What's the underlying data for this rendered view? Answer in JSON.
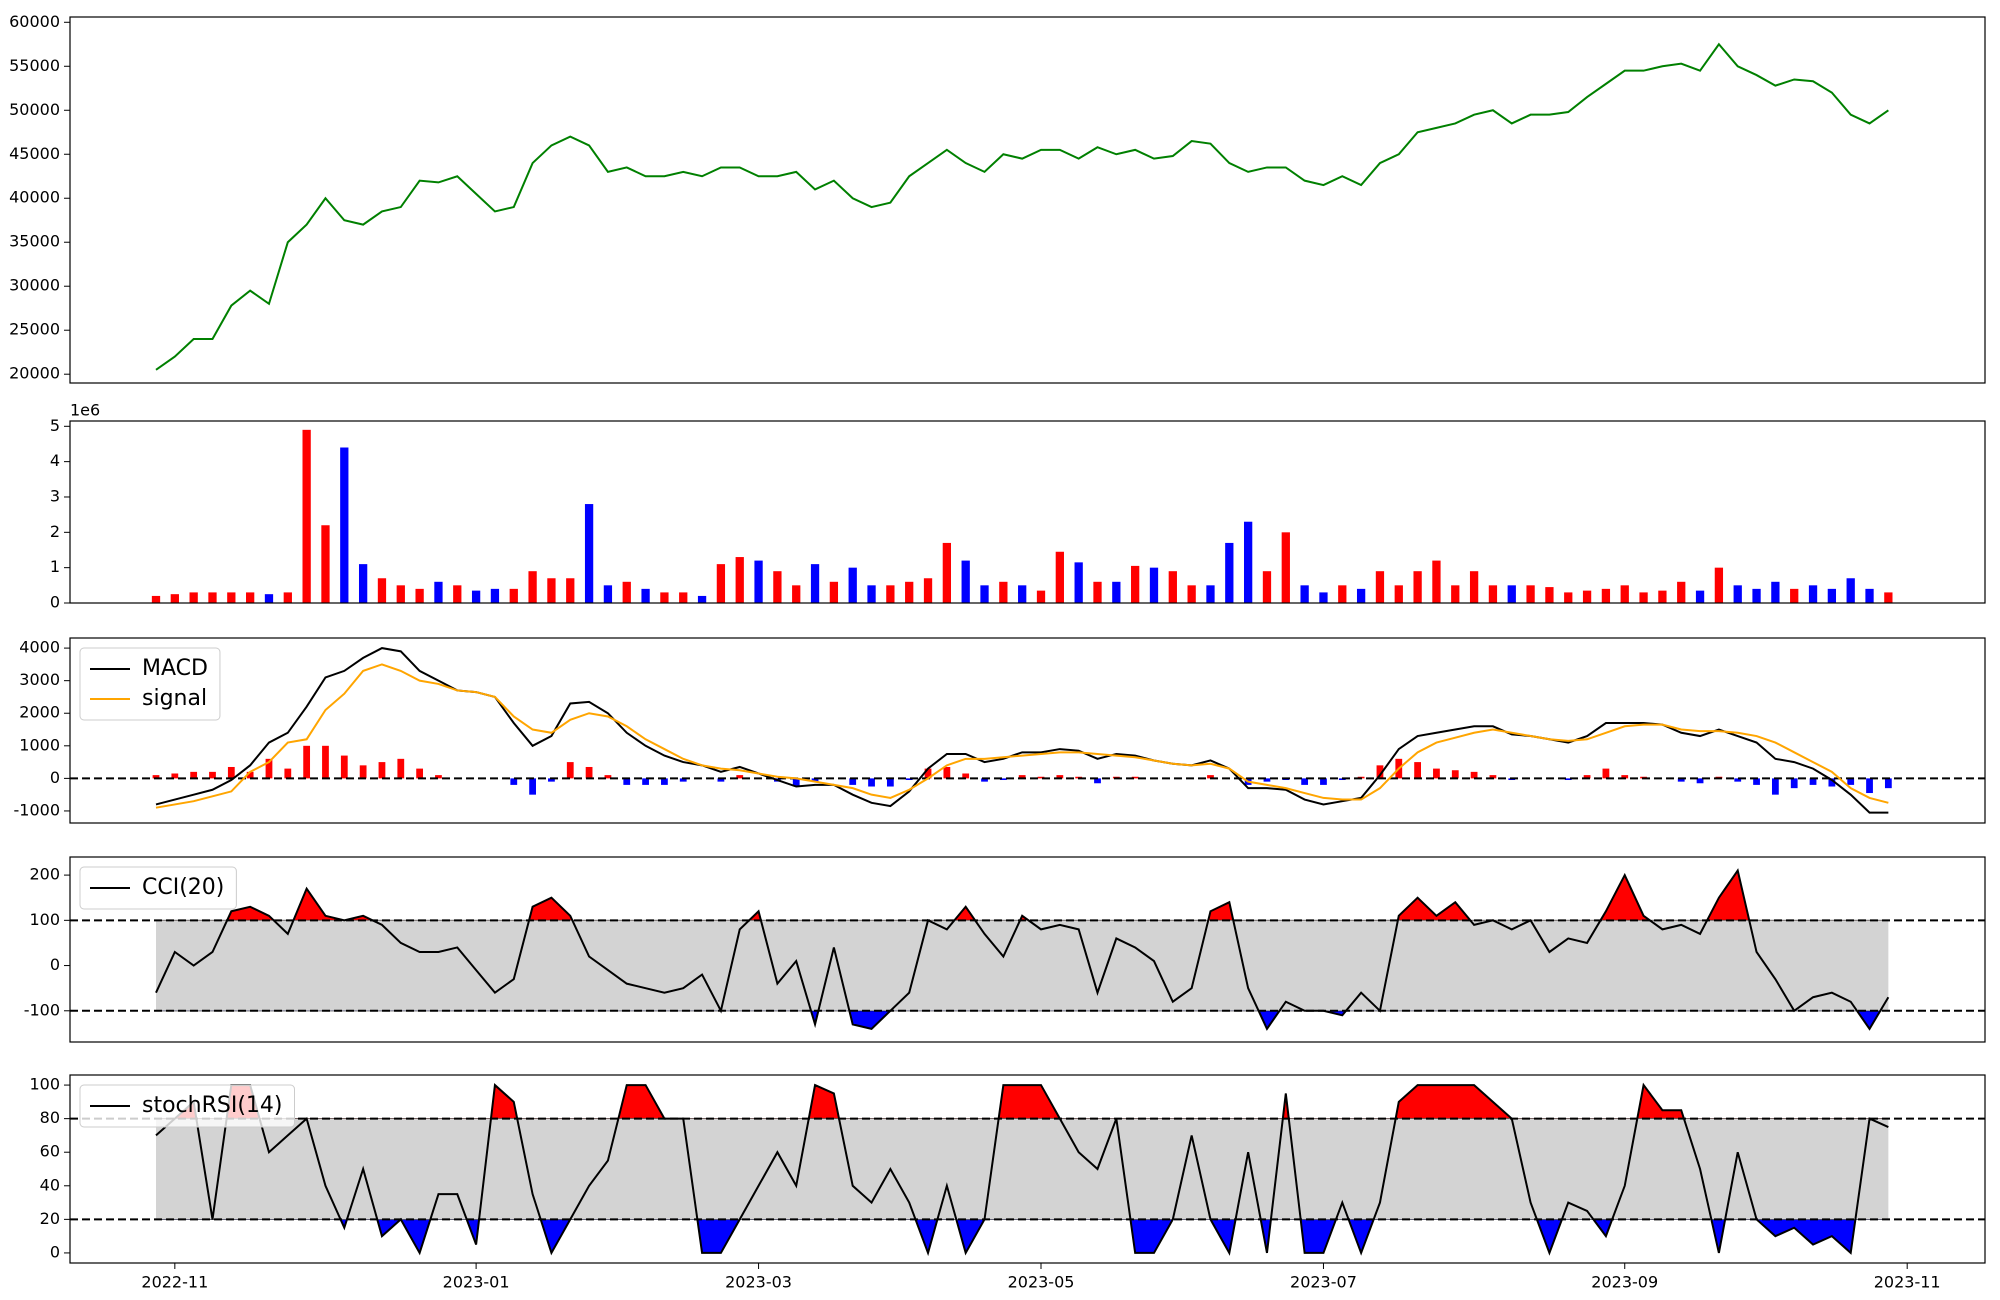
{
  "chart_data": [
    {
      "type": "line",
      "color": "#008000",
      "values": [
        20500,
        22000,
        24000,
        24000,
        27800,
        29500,
        28000,
        35000,
        37000,
        40000,
        37500,
        37000,
        38500,
        39000,
        42000,
        41800,
        42500,
        40500,
        38500,
        39000,
        44000,
        46000,
        47000,
        46000,
        43000,
        43500,
        42500,
        42500,
        43000,
        42500,
        43500,
        43500,
        42500,
        42500,
        43000,
        41000,
        42000,
        40000,
        39000,
        39500,
        42500,
        44000,
        45500,
        44000,
        43000,
        45000,
        44500,
        45500,
        45500,
        44500,
        45800,
        45000,
        45500,
        44500,
        44800,
        46500,
        46200,
        44000,
        43000,
        43500,
        43500,
        42000,
        41500,
        42500,
        41500,
        44000,
        45000,
        47500,
        48000,
        48500,
        49500,
        50000,
        48500,
        49500,
        49500,
        49800,
        51500,
        53000,
        54500,
        54500,
        55000,
        55300,
        54500,
        57500,
        55000,
        54000,
        52800,
        53500,
        53300,
        52000,
        49500,
        48500,
        50000
      ],
      "ylim": [
        19000,
        60600
      ],
      "yticks": [
        20000,
        25000,
        30000,
        35000,
        40000,
        45000,
        50000,
        55000,
        60000
      ]
    },
    {
      "type": "bar",
      "offset_label": "1e6",
      "up_color": "#ff0000",
      "down_color": "#0000ff",
      "values": [
        0.2,
        0.25,
        0.3,
        0.3,
        0.3,
        0.3,
        0.25,
        0.3,
        4.9,
        2.2,
        4.4,
        1.1,
        0.7,
        0.5,
        0.4,
        0.6,
        0.5,
        0.35,
        0.4,
        0.4,
        0.9,
        0.7,
        0.7,
        2.8,
        0.5,
        0.6,
        0.4,
        0.3,
        0.3,
        0.2,
        1.1,
        1.3,
        1.2,
        0.9,
        0.5,
        1.1,
        0.6,
        1.0,
        0.5,
        0.5,
        0.6,
        0.7,
        1.7,
        1.2,
        0.5,
        0.6,
        0.5,
        0.35,
        1.45,
        1.15,
        0.6,
        0.6,
        1.05,
        1.0,
        0.9,
        0.5,
        0.5,
        1.7,
        2.3,
        0.9,
        2.0,
        0.5,
        0.3,
        0.5,
        0.4,
        0.9,
        0.5,
        0.9,
        1.2,
        0.5,
        0.9,
        0.5,
        0.5,
        0.5,
        0.45,
        0.3,
        0.35,
        0.4,
        0.5,
        0.3,
        0.35,
        0.6,
        0.35,
        1.0,
        0.5,
        0.4,
        0.6,
        0.4,
        0.5,
        0.4,
        0.7,
        0.4,
        0.3
      ],
      "ylim": [
        0,
        5.15
      ],
      "yticks": [
        0,
        1,
        2,
        3,
        4,
        5
      ]
    },
    {
      "type": "macd",
      "positive_color": "#ff0000",
      "negative_color": "#0000ff",
      "zero_line": true,
      "series": [
        {
          "name": "MACD",
          "color": "#000000",
          "values": [
            -800,
            -650,
            -500,
            -350,
            -50,
            400,
            1100,
            1400,
            2200,
            3100,
            3300,
            3700,
            4000,
            3900,
            3300,
            3000,
            2700,
            2650,
            2500,
            1700,
            1000,
            1300,
            2300,
            2350,
            2000,
            1400,
            1000,
            700,
            500,
            400,
            200,
            350,
            150,
            -50,
            -250,
            -200,
            -200,
            -500,
            -750,
            -850,
            -400,
            300,
            750,
            750,
            500,
            600,
            800,
            800,
            900,
            850,
            600,
            750,
            700,
            550,
            450,
            400,
            550,
            300,
            -300,
            -300,
            -350,
            -650,
            -800,
            -700,
            -600,
            100,
            900,
            1300,
            1400,
            1500,
            1600,
            1600,
            1350,
            1300,
            1200,
            1100,
            1300,
            1700,
            1700,
            1700,
            1650,
            1400,
            1300,
            1500,
            1300,
            1100,
            600,
            500,
            300,
            -50,
            -500,
            -1050,
            -1050
          ]
        },
        {
          "name": "signal",
          "color": "#ffa500",
          "values": [
            -900,
            -800,
            -700,
            -550,
            -400,
            200,
            500,
            1100,
            1200,
            2100,
            2600,
            3300,
            3500,
            3300,
            3000,
            2900,
            2700,
            2650,
            2500,
            1900,
            1500,
            1400,
            1800,
            2000,
            1900,
            1600,
            1200,
            900,
            600,
            400,
            300,
            250,
            150,
            50,
            0,
            -100,
            -200,
            -300,
            -500,
            -600,
            -350,
            0,
            400,
            600,
            600,
            650,
            700,
            750,
            800,
            800,
            750,
            700,
            650,
            550,
            450,
            400,
            450,
            300,
            -100,
            -200,
            -300,
            -450,
            -600,
            -650,
            -650,
            -300,
            300,
            800,
            1100,
            1250,
            1400,
            1500,
            1400,
            1300,
            1200,
            1150,
            1200,
            1400,
            1600,
            1650,
            1650,
            1500,
            1450,
            1450,
            1400,
            1300,
            1100,
            800,
            500,
            200,
            -300,
            -600,
            -750
          ]
        }
      ],
      "ylim": [
        -1370,
        4310
      ],
      "yticks": [
        -1000,
        0,
        1000,
        2000,
        3000,
        4000
      ]
    },
    {
      "type": "oscillator",
      "thresholds": [
        -100,
        100
      ],
      "band_color": "#d3d3d3",
      "above_color": "#ff0000",
      "below_color": "#0000ff",
      "series": [
        {
          "name": "CCI(20)",
          "color": "#000000",
          "values": [
            -60,
            30,
            0,
            30,
            120,
            130,
            110,
            70,
            170,
            110,
            100,
            110,
            90,
            50,
            30,
            30,
            40,
            -10,
            -60,
            -30,
            130,
            150,
            110,
            20,
            -10,
            -40,
            -50,
            -60,
            -50,
            -20,
            -100,
            80,
            120,
            -40,
            10,
            -130,
            40,
            -130,
            -140,
            -100,
            -60,
            100,
            80,
            130,
            70,
            20,
            110,
            80,
            90,
            80,
            -60,
            60,
            40,
            10,
            -80,
            -50,
            120,
            140,
            -50,
            -140,
            -80,
            -100,
            -100,
            -110,
            -60,
            -100,
            110,
            150,
            110,
            140,
            90,
            100,
            80,
            100,
            30,
            60,
            50,
            120,
            200,
            110,
            80,
            90,
            70,
            150,
            210,
            30,
            -30,
            -100,
            -70,
            -60,
            -80,
            -140,
            -70
          ]
        }
      ],
      "ylim": [
        -169,
        240
      ],
      "yticks": [
        -100,
        0,
        100,
        200
      ]
    },
    {
      "type": "oscillator",
      "thresholds": [
        20,
        80
      ],
      "band_color": "#d3d3d3",
      "above_color": "#ff0000",
      "below_color": "#0000ff",
      "categories": [
        null,
        "2022-11",
        null,
        null,
        null,
        null,
        null,
        null,
        null,
        null,
        null,
        null,
        null,
        null,
        null,
        null,
        null,
        "2023-01",
        null,
        null,
        null,
        null,
        null,
        null,
        null,
        null,
        null,
        null,
        null,
        null,
        null,
        null,
        "2023-03",
        null,
        null,
        null,
        null,
        null,
        null,
        null,
        null,
        null,
        null,
        null,
        null,
        null,
        null,
        "2023-05",
        null,
        null,
        null,
        null,
        null,
        null,
        null,
        null,
        null,
        null,
        null,
        null,
        null,
        null,
        "2023-07",
        null,
        null,
        null,
        null,
        null,
        null,
        null,
        null,
        null,
        null,
        null,
        null,
        null,
        null,
        null,
        "2023-09",
        null,
        null,
        null,
        null,
        null,
        null,
        null,
        null,
        null,
        null,
        null,
        null,
        null,
        null,
        "2023-11"
      ],
      "series": [
        {
          "name": "stochRSI(14)",
          "color": "#000000",
          "values": [
            70,
            80,
            90,
            20,
            100,
            100,
            60,
            70,
            80,
            40,
            15,
            50,
            10,
            20,
            0,
            35,
            35,
            5,
            100,
            90,
            35,
            0,
            20,
            40,
            55,
            100,
            100,
            80,
            80,
            0,
            0,
            20,
            40,
            60,
            40,
            100,
            95,
            40,
            30,
            50,
            30,
            0,
            40,
            0,
            20,
            100,
            100,
            100,
            80,
            60,
            50,
            80,
            0,
            0,
            20,
            70,
            20,
            0,
            60,
            0,
            95,
            0,
            0,
            30,
            0,
            30,
            90,
            100,
            100,
            100,
            100,
            90,
            80,
            30,
            0,
            30,
            25,
            10,
            40,
            100,
            85,
            85,
            50,
            0,
            60,
            20,
            10,
            15,
            5,
            10,
            0,
            80,
            75,
            null
          ]
        }
      ],
      "ylim": [
        -6,
        106
      ],
      "yticks": [
        0,
        20,
        40,
        60,
        80,
        100
      ]
    }
  ]
}
